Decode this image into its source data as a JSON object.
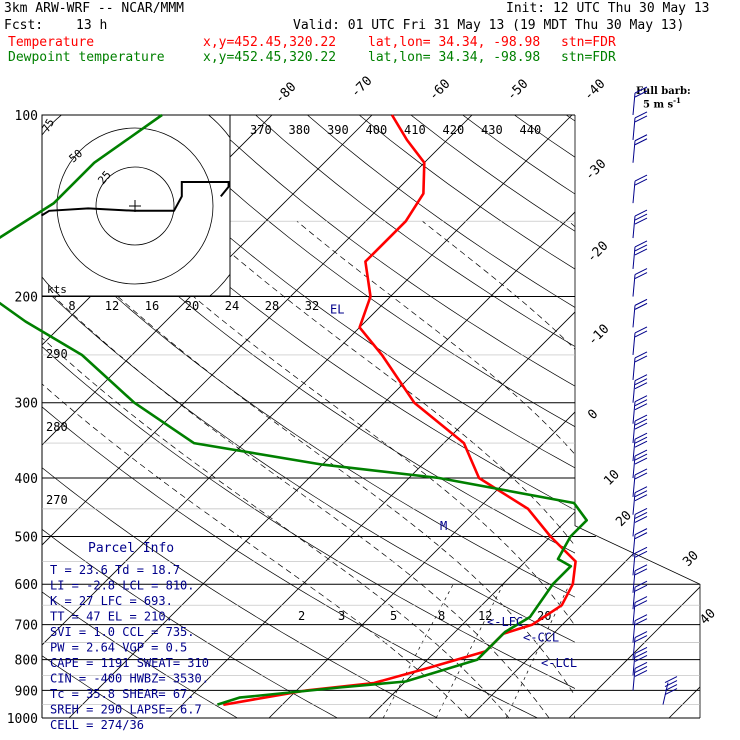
{
  "header": {
    "model": "3km ARW-WRF -- NCAR/MMM",
    "init": "Init: 12 UTC Thu 30 May 13",
    "fcst_label": "Fcst:",
    "fcst_value": "13 h",
    "valid": "Valid: 01 UTC Fri 31 May 13 (19 MDT Thu 30 May 13)",
    "legend": [
      {
        "name": "Temperature",
        "color": "#ff0000",
        "xy": "x,y=452.45,320.22",
        "latlon": "lat,lon= 34.34, -98.98",
        "stn": "stn=FDR"
      },
      {
        "name": "Dewpoint temperature",
        "color": "#008000",
        "xy": "x,y=452.45,320.22",
        "latlon": "lat,lon= 34.34, -98.98",
        "stn": "stn=FDR"
      }
    ],
    "barb_key_1": "Full barb:",
    "barb_key_2": "5 m s",
    "barb_key_exp": "-1"
  },
  "chart_data": {
    "type": "skew-t log-p sounding",
    "pressure_levels": [
      100,
      200,
      300,
      400,
      500,
      600,
      700,
      800,
      900,
      1000
    ],
    "isotherm_labels": [
      -80,
      -70,
      -60,
      -50,
      -40,
      -30,
      -20,
      -10,
      0,
      10,
      20,
      30,
      40
    ],
    "theta_labels_top": [
      370,
      380,
      390,
      400,
      410,
      420,
      430,
      440
    ],
    "theta_labels_left": [
      290,
      280,
      270
    ],
    "mixing_ratio_labels": [
      2,
      3,
      5,
      8,
      12,
      20
    ],
    "series": [
      {
        "name": "Temperature",
        "color": "#ff0000",
        "points": [
          [
            925,
            -22.5
          ],
          [
            950,
            -25.8
          ],
          [
            900,
            -19
          ],
          [
            875,
            -13
          ],
          [
            825,
            -9
          ],
          [
            775,
            -5
          ],
          [
            725,
            -5
          ],
          [
            700,
            -3
          ],
          [
            650,
            -2
          ],
          [
            600,
            -3
          ],
          [
            550,
            -5
          ],
          [
            500,
            -10
          ],
          [
            450,
            -15
          ],
          [
            400,
            -23
          ],
          [
            350,
            -28
          ],
          [
            300,
            -37
          ],
          [
            250,
            -45
          ],
          [
            225,
            -50
          ],
          [
            200,
            -52
          ],
          [
            175,
            -56
          ],
          [
            150,
            -56
          ],
          [
            135,
            -57
          ],
          [
            120,
            -60
          ],
          [
            110,
            -64
          ],
          [
            100,
            -68
          ]
        ]
      },
      {
        "name": "Dewpoint temperature",
        "color": "#008000",
        "points": [
          [
            950,
            -26.5
          ],
          [
            925,
            -25
          ],
          [
            890,
            -16
          ],
          [
            870,
            -10
          ],
          [
            800,
            -5
          ],
          [
            720,
            -5
          ],
          [
            680,
            -4
          ],
          [
            600,
            -5
          ],
          [
            560,
            -5
          ],
          [
            545,
            -7
          ],
          [
            500,
            -8
          ],
          [
            470,
            -8
          ],
          [
            440,
            -11
          ],
          [
            400,
            -27
          ],
          [
            380,
            -40
          ],
          [
            350,
            -55
          ],
          [
            300,
            -65
          ],
          [
            250,
            -75
          ],
          [
            220,
            -84
          ],
          [
            200,
            -90
          ],
          [
            180,
            -94
          ],
          [
            160,
            -95
          ],
          [
            140,
            -93
          ],
          [
            120,
            -93
          ],
          [
            100,
            -91
          ]
        ]
      }
    ],
    "parcel_levels": [
      {
        "label": "<-LFC",
        "p": 693
      },
      {
        "label": "<-CCL",
        "p": 735
      },
      {
        "label": "<-LCL",
        "p": 810
      },
      {
        "label": "EL",
        "p": 210
      },
      {
        "label": "M",
        "p": 480
      }
    ],
    "hodograph": {
      "units": "kts",
      "ring_labels": [
        "25",
        "50",
        "75"
      ],
      "speed_labels": [
        "8",
        "12",
        "16",
        "20",
        "24",
        "28",
        "32"
      ],
      "path": [
        [
          -12,
          4
        ],
        [
          -11,
          2
        ],
        [
          -6,
          1
        ],
        [
          0,
          2
        ],
        [
          5,
          2
        ],
        [
          6,
          -4
        ],
        [
          6,
          -10
        ],
        [
          8,
          -10
        ],
        [
          12,
          -10
        ],
        [
          12,
          -8
        ],
        [
          11,
          -4
        ]
      ]
    },
    "wind_barbs": [
      {
        "p": 100,
        "barbs": 2
      },
      {
        "p": 110,
        "barbs": 2
      },
      {
        "p": 120,
        "barbs": 2
      },
      {
        "p": 140,
        "barbs": 2
      },
      {
        "p": 160,
        "barbs": 3
      },
      {
        "p": 180,
        "barbs": 3
      },
      {
        "p": 200,
        "barbs": 2
      },
      {
        "p": 225,
        "barbs": 2
      },
      {
        "p": 250,
        "barbs": 2
      },
      {
        "p": 275,
        "barbs": 2
      },
      {
        "p": 300,
        "barbs": 3
      },
      {
        "p": 325,
        "barbs": 3
      },
      {
        "p": 350,
        "barbs": 3
      },
      {
        "p": 375,
        "barbs": 3
      },
      {
        "p": 400,
        "barbs": 3
      },
      {
        "p": 430,
        "barbs": 2
      },
      {
        "p": 460,
        "barbs": 3
      },
      {
        "p": 500,
        "barbs": 3
      },
      {
        "p": 540,
        "barbs": 2
      },
      {
        "p": 580,
        "barbs": 2
      },
      {
        "p": 620,
        "barbs": 2
      },
      {
        "p": 660,
        "barbs": 2
      },
      {
        "p": 700,
        "barbs": 2
      },
      {
        "p": 750,
        "barbs": 2
      },
      {
        "p": 800,
        "barbs": 2
      },
      {
        "p": 850,
        "barbs": 3
      },
      {
        "p": 900,
        "barbs": 3
      },
      {
        "p": 950,
        "barbs": 4
      }
    ],
    "parcel_info": {
      "title": "Parcel Info",
      "rows": [
        "T   =   23.6  Td =  18.7",
        "LI  =   -2.8  LCL =  810.",
        "K   =    27   LFC =  693.",
        "TT  =    47   EL  =  210.",
        "SVI =   1.0   CCL =  735.",
        "PW  =   2.64  VGP =   0.5",
        "CAPE =  1191  SWEAT=  310",
        "CIN  =  -400  HWBZ= 3530.",
        "Tc  =   35.8  SHEAR=  67.",
        "SREH =  290  LAPSE=  6.7",
        "CELL = 274/36"
      ]
    }
  }
}
